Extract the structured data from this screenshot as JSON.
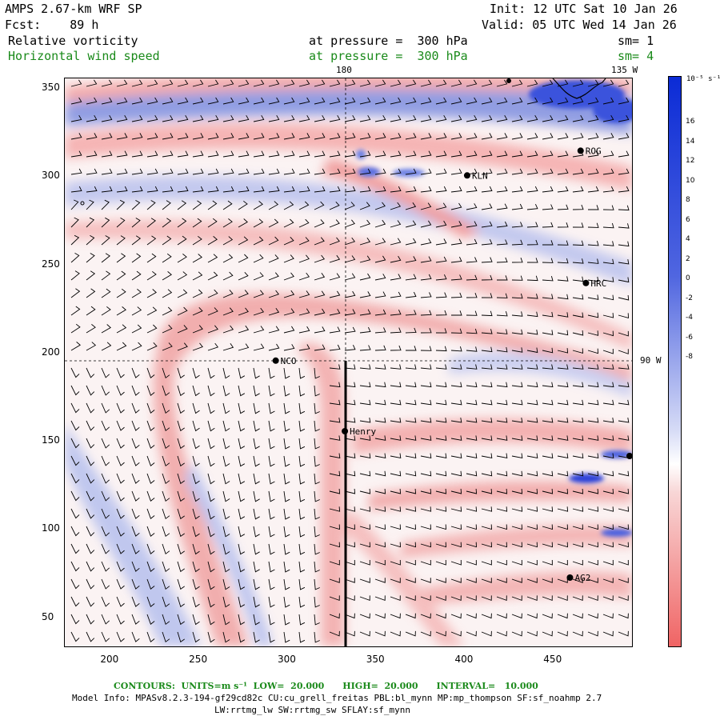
{
  "header": {
    "model_line": "AMPS 2.67-km WRF SP",
    "fcst_line": "Fcst:    89 h",
    "init_line": "Init: 12 UTC Sat 10 Jan 26",
    "valid_line": "Valid: 05 UTC Wed 14 Jan 26",
    "field1": {
      "name": "Relative vorticity",
      "level": "at pressure =  300 hPa",
      "sm": "sm= 1"
    },
    "field2": {
      "name": "Horizontal wind speed",
      "level": "at pressure =  300 hPa",
      "sm": "sm= 4"
    }
  },
  "map": {
    "x_ticks": [
      "200",
      "250",
      "300",
      "350",
      "400",
      "450"
    ],
    "y_ticks": [
      "350",
      "300",
      "250",
      "200",
      "150",
      "100",
      "50"
    ],
    "meridian_labels": {
      "lon180": "180",
      "lon135w": "135 W",
      "lon90w": "90 W"
    },
    "stations": [
      {
        "name": "ROG",
        "x": 466,
        "y": 314
      },
      {
        "name": "KLN",
        "x": 402,
        "y": 300
      },
      {
        "name": "HRC",
        "x": 469,
        "y": 239
      },
      {
        "name": "NCO",
        "x": 294,
        "y": 195
      },
      {
        "name": "Henry",
        "x": 333,
        "y": 155
      },
      {
        "name": "AG2",
        "x": 460,
        "y": 72
      }
    ]
  },
  "colorbar": {
    "units": "10⁻⁵ s⁻¹",
    "labels": [
      "16",
      "14",
      "12",
      "10",
      "8",
      "6",
      "4",
      "2",
      "0",
      "-2",
      "-4",
      "-6",
      "-8"
    ]
  },
  "footer": {
    "contours": "CONTOURS:  UNITS=m s⁻¹  LOW=  20.000      HIGH=  20.000      INTERVAL=   10.000",
    "model_info": "Model Info: MPASv8.2.3-194-gf29cd82c CU:cu_grell_freitas PBL:bl_mynn MP:mp_thompson SF:sf_noahmp 2.7",
    "model_info2": "LW:rrtmg_lw SW:rrtmg_sw SFLAY:sf_mynn"
  }
}
